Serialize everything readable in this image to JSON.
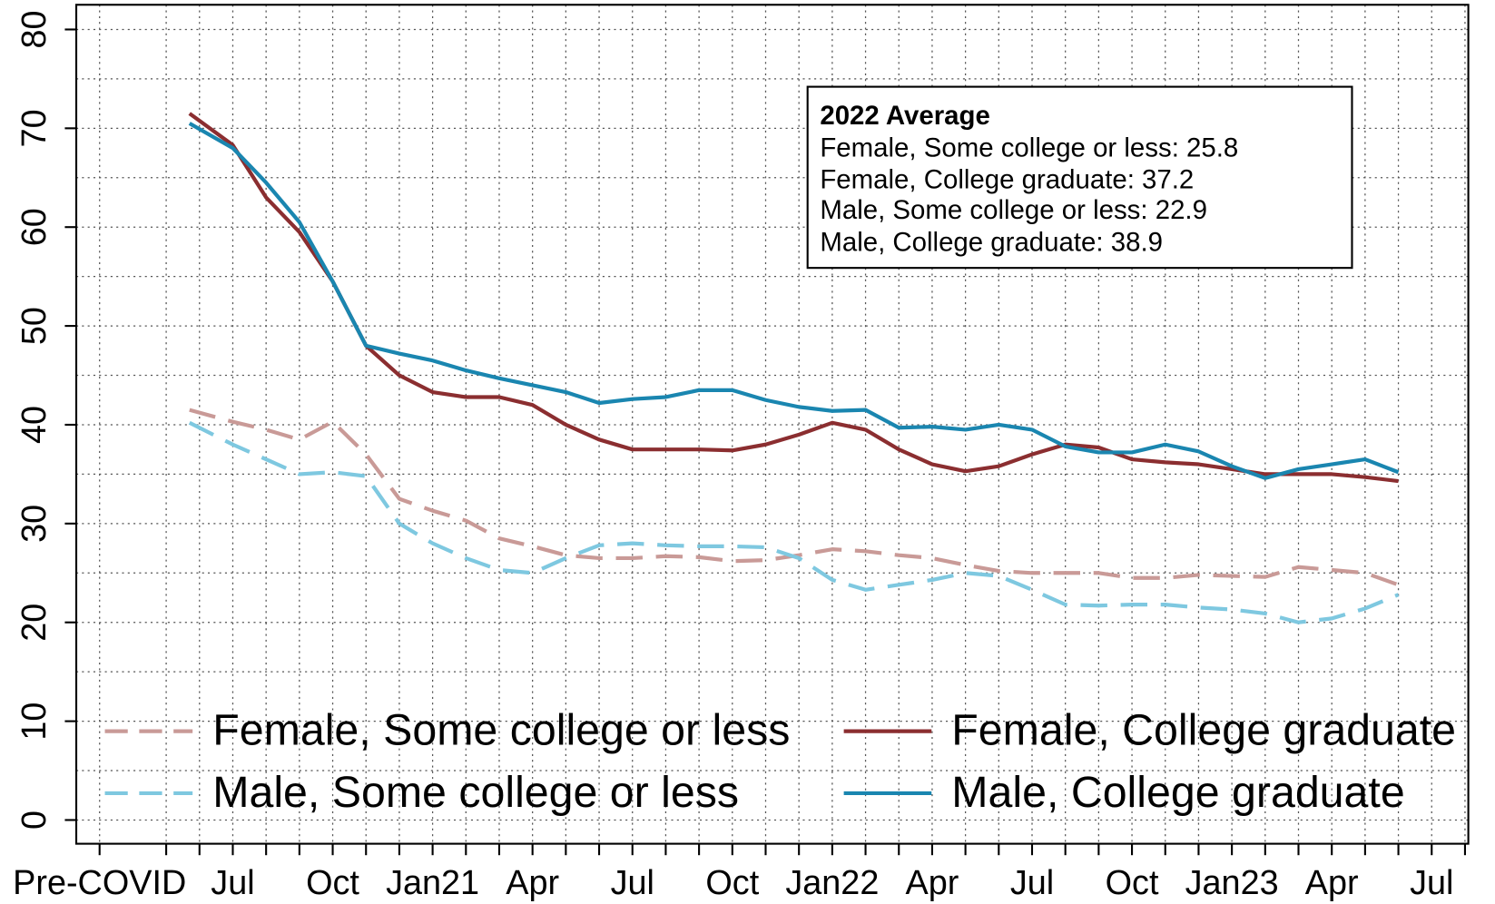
{
  "chart_data": {
    "type": "line",
    "x": [
      -1.3,
      0,
      1,
      2,
      3,
      4,
      5,
      6,
      7,
      8,
      9,
      10,
      11,
      12,
      13,
      14,
      15,
      16,
      17,
      18,
      19,
      20,
      21,
      22,
      23,
      24,
      25,
      26,
      27,
      28,
      29,
      30,
      31,
      32,
      33,
      34,
      35
    ],
    "series": [
      {
        "name": "Female, Some college or less",
        "color": "#c99a97",
        "dashed": true,
        "values": [
          41.5,
          40.3,
          39.5,
          38.5,
          40.3,
          37,
          32.5,
          31.3,
          30.3,
          28.5,
          27.7,
          26.8,
          26.5,
          26.5,
          26.7,
          26.6,
          26.2,
          26.3,
          26.8,
          27.4,
          27.2,
          26.8,
          26.5,
          25.8,
          25.2,
          25,
          25,
          25,
          24.5,
          24.5,
          24.8,
          24.7,
          24.6,
          25.6,
          25.3,
          25,
          23.8
        ]
      },
      {
        "name": "Female, College graduate",
        "color": "#8b2e30",
        "dashed": false,
        "values": [
          71.5,
          68.3,
          63,
          59.5,
          54.5,
          48,
          45,
          43.3,
          42.8,
          42.8,
          42,
          40,
          38.5,
          37.5,
          37.5,
          37.5,
          37.4,
          38,
          39,
          40.2,
          39.5,
          37.5,
          36,
          35.3,
          35.8,
          37,
          38,
          37.7,
          36.5,
          36.2,
          36,
          35.5,
          35,
          35,
          35,
          34.7,
          34.3
        ]
      },
      {
        "name": "Male, Some college or less",
        "color": "#7ec8e0",
        "dashed": true,
        "values": [
          40.2,
          38,
          36.5,
          35,
          35.2,
          34.8,
          30,
          28,
          26.5,
          25.3,
          25,
          26.5,
          27.8,
          28,
          27.8,
          27.7,
          27.7,
          27.6,
          26.5,
          24.3,
          23.3,
          23.8,
          24.3,
          25,
          24.7,
          23.3,
          21.8,
          21.7,
          21.8,
          21.8,
          21.5,
          21.3,
          20.9,
          20,
          20.4,
          21.4,
          22.8
        ]
      },
      {
        "name": "Male, College graduate",
        "color": "#1a86b0",
        "dashed": false,
        "values": [
          70.5,
          68,
          64.5,
          60.5,
          54.5,
          48,
          47.2,
          46.5,
          45.5,
          44.7,
          44,
          43.3,
          42.2,
          42.6,
          42.8,
          43.5,
          43.5,
          42.5,
          41.8,
          41.4,
          41.5,
          39.7,
          39.8,
          39.5,
          40,
          39.5,
          37.8,
          37.2,
          37.2,
          38,
          37.3,
          35.8,
          34.6,
          35.5,
          36,
          36.5,
          35.2
        ]
      }
    ],
    "xlim": [
      -4.7,
      37.1
    ],
    "xticks": [
      {
        "value": -4,
        "label": "Pre-COVID"
      },
      {
        "value": 0,
        "label": "Jul"
      },
      {
        "value": 3,
        "label": "Oct"
      },
      {
        "value": 6,
        "label": "Jan21"
      },
      {
        "value": 9,
        "label": "Apr"
      },
      {
        "value": 12,
        "label": "Jul"
      },
      {
        "value": 15,
        "label": "Oct"
      },
      {
        "value": 18,
        "label": "Jan22"
      },
      {
        "value": 21,
        "label": "Apr"
      },
      {
        "value": 24,
        "label": "Jul"
      },
      {
        "value": 27,
        "label": "Oct"
      },
      {
        "value": 30,
        "label": "Jan23"
      },
      {
        "value": 33,
        "label": "Apr"
      },
      {
        "value": 36,
        "label": "Jul"
      }
    ],
    "xminorticks": [
      -2,
      -1,
      1,
      2,
      4,
      5,
      7,
      8,
      10,
      11,
      13,
      14,
      16,
      17,
      19,
      20,
      22,
      23,
      25,
      26,
      28,
      29,
      31,
      32,
      34,
      35,
      37
    ],
    "ylim": [
      -2.4,
      82.5
    ],
    "yticks": [
      0,
      10,
      20,
      30,
      40,
      50,
      60,
      70,
      80
    ],
    "yminorticks": [
      5,
      15,
      25,
      35,
      45,
      55,
      65,
      75
    ],
    "grid": true,
    "legend": "lower left",
    "annotation": {
      "title": "2022 Average",
      "lines": [
        "Female, Some college or less: 25.8",
        "Female, College graduate: 37.2",
        "Male, Some college or less: 22.9",
        "Male, College graduate: 38.9"
      ]
    }
  }
}
